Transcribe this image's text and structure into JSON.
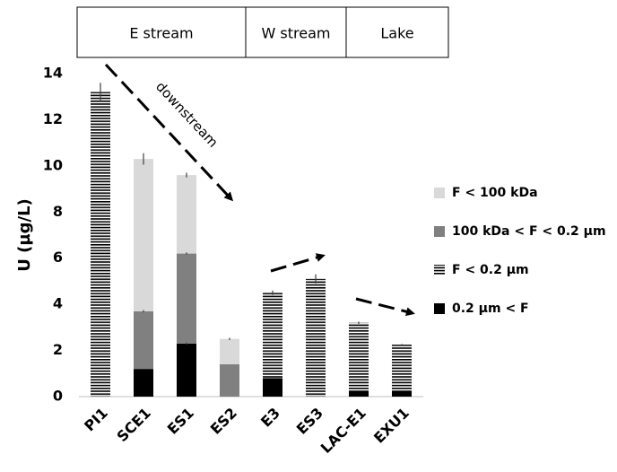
{
  "chart_data": {
    "type": "bar",
    "stacked": true,
    "ylabel": "U (µg/L)",
    "categories": [
      "PI1",
      "SCE1",
      "ES1",
      "ES2",
      "E3",
      "ES3",
      "LAC-E1",
      "EXU1"
    ],
    "groups": [
      "E stream",
      "W stream",
      "Lake"
    ],
    "annotation": "downstream",
    "series": [
      {
        "name": "0.2 µm < F",
        "color": "#000000",
        "pattern": "solid",
        "values": [
          null,
          1.2,
          2.3,
          null,
          0.8,
          null,
          0.25,
          0.25
        ],
        "errors": [
          null,
          null,
          0.05,
          null,
          null,
          null,
          null,
          null
        ]
      },
      {
        "name": "F < 0.2 µm",
        "color": "#000000",
        "pattern": "hlines",
        "values": [
          13.2,
          null,
          null,
          null,
          3.7,
          5.1,
          2.95,
          2.0
        ],
        "errors": [
          0.4,
          null,
          null,
          null,
          0.1,
          0.2,
          0.05,
          0.03
        ]
      },
      {
        "name": "100 kDa < F < 0.2 µm",
        "color": "#808080",
        "pattern": "solid",
        "values": [
          null,
          2.5,
          3.9,
          1.4,
          null,
          null,
          null,
          null
        ],
        "errors": [
          null,
          0.05,
          0.05,
          null,
          null,
          null,
          null,
          null
        ]
      },
      {
        "name": "F < 100 kDa",
        "color": "#d9d9d9",
        "pattern": "solid",
        "values": [
          null,
          6.6,
          3.4,
          1.1,
          null,
          null,
          null,
          null
        ],
        "errors": [
          null,
          0.25,
          0.1,
          0.05,
          null,
          null,
          null,
          null
        ]
      }
    ],
    "ylim": [
      0,
      14
    ],
    "yticks": [
      0,
      2,
      4,
      6,
      8,
      10,
      12,
      14
    ],
    "grid": false,
    "legend": "right"
  }
}
